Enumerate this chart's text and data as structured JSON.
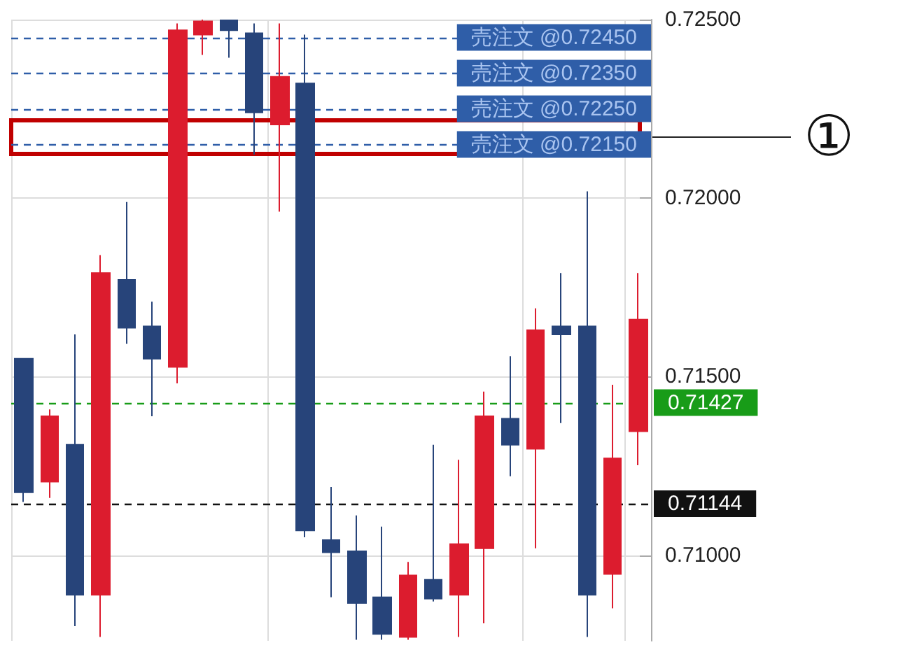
{
  "chart_data": {
    "type": "candlestick",
    "categories": [
      null,
      null,
      null,
      null,
      null,
      null,
      null,
      null,
      null,
      null,
      null,
      null,
      null,
      null,
      null,
      null,
      null,
      null,
      null,
      null,
      null,
      null,
      null,
      null,
      null
    ],
    "ohlc": [
      [
        0.7155,
        0.7155,
        0.71149,
        0.71176
      ],
      [
        0.71206,
        0.71408,
        0.7116,
        0.71389
      ],
      [
        0.71309,
        0.71618,
        0.70801,
        0.70889
      ],
      [
        0.70889,
        0.7184,
        0.70771,
        0.7179
      ],
      [
        0.71771,
        0.71989,
        0.71592,
        0.71637
      ],
      [
        0.71641,
        0.7171,
        0.71389,
        0.7155
      ],
      [
        0.71527,
        0.72489,
        0.71481,
        0.7247
      ],
      [
        0.72458,
        0.725,
        0.72401,
        0.72495
      ],
      [
        0.72498,
        0.725,
        0.72393,
        0.7247
      ],
      [
        0.72462,
        0.72489,
        0.72122,
        0.7224
      ],
      [
        0.72206,
        0.72489,
        0.71962,
        0.7234
      ],
      [
        0.72321,
        0.72458,
        0.7105,
        0.71069
      ],
      [
        0.71042,
        0.71191,
        0.70882,
        0.71008
      ],
      [
        0.71011,
        0.71111,
        0.70763,
        0.70866
      ],
      [
        0.70882,
        0.7108,
        0.70763,
        0.70779
      ],
      [
        0.70771,
        0.70981,
        0.70763,
        0.70943
      ],
      [
        0.70931,
        0.71309,
        0.7087,
        0.70878
      ],
      [
        0.70889,
        0.71267,
        0.70771,
        0.71031
      ],
      [
        0.71019,
        0.71458,
        0.70809,
        0.71389
      ],
      [
        0.71382,
        0.71557,
        0.71221,
        0.71309
      ],
      [
        0.71298,
        0.71691,
        0.71019,
        0.7163
      ],
      [
        0.71641,
        0.7179,
        0.7137,
        0.71618
      ],
      [
        0.71641,
        0.72019,
        0.70771,
        0.70889
      ],
      [
        0.70947,
        0.71477,
        0.70851,
        0.71271
      ],
      [
        0.71347,
        0.7179,
        0.71252,
        0.7166
      ]
    ],
    "colors": [
      "#27447a",
      "#dc1c2e",
      "#27447a",
      "#dc1c2e",
      "#27447a",
      "#27447a",
      "#dc1c2e",
      "#dc1c2e",
      "#27447a",
      "#27447a",
      "#dc1c2e",
      "#27447a",
      "#27447a",
      "#27447a",
      "#27447a",
      "#dc1c2e",
      "#27447a",
      "#dc1c2e",
      "#dc1c2e",
      "#27447a",
      "#dc1c2e",
      "#27447a",
      "#27447a",
      "#dc1c2e",
      "#dc1c2e"
    ],
    "ylim": [
      0.7076,
      0.725
    ],
    "yticks": [
      {
        "value": 0.725,
        "label": "0.72500"
      },
      {
        "value": 0.72,
        "label": "0.72000"
      },
      {
        "value": 0.715,
        "label": "0.71500"
      },
      {
        "value": 0.71,
        "label": "0.71000"
      }
    ],
    "grid": true,
    "ref_lines": [
      {
        "axis": "y",
        "value": 0.7245,
        "label": "売注文 @0.72450",
        "color": "#2f5ea8",
        "line_style": "dashed"
      },
      {
        "axis": "y",
        "value": 0.7235,
        "label": "売注文 @0.72350",
        "color": "#2f5ea8",
        "line_style": "dashed"
      },
      {
        "axis": "y",
        "value": 0.7225,
        "label": "売注文 @0.72250",
        "color": "#2f5ea8",
        "line_style": "dashed"
      },
      {
        "axis": "y",
        "value": 0.7215,
        "label": "売注文 @0.72150",
        "color": "#2f5ea8",
        "line_style": "dashed"
      },
      {
        "axis": "y",
        "value": 0.71427,
        "label": "0.71427",
        "color": "#189c18",
        "line_style": "dashed"
      },
      {
        "axis": "y",
        "value": 0.71144,
        "label": "0.71144",
        "color": "#111111",
        "line_style": "dashed"
      }
    ],
    "annotations": [
      "①"
    ]
  }
}
